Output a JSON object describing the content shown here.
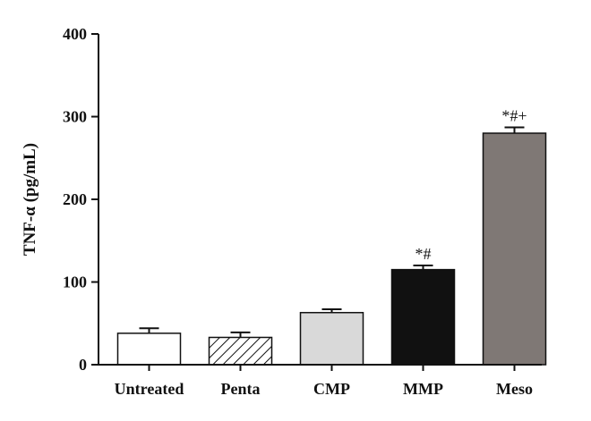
{
  "chart_data": {
    "type": "bar",
    "title": "",
    "xlabel": "",
    "ylabel": "TNF-α (pg/mL)",
    "ylim": [
      0,
      400
    ],
    "yticks": [
      0,
      100,
      200,
      300,
      400
    ],
    "grid": false,
    "categories": [
      "Untreated",
      "Penta",
      "CMP",
      "MMP",
      "Meso"
    ],
    "values": [
      38,
      33,
      63,
      115,
      280
    ],
    "errors": [
      6,
      6,
      4,
      5,
      7
    ],
    "annotations": [
      "",
      "",
      "",
      "*#",
      "*#+"
    ],
    "bar_fills": [
      "#ffffff",
      "hatched",
      "#d9d9d9",
      "#111111",
      "#7f7875"
    ]
  }
}
